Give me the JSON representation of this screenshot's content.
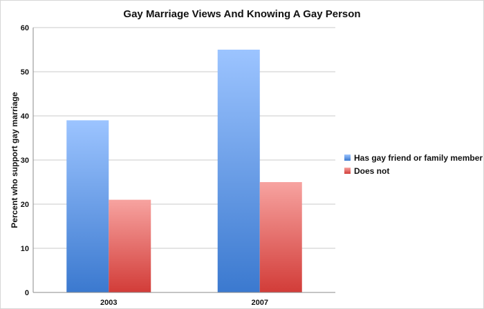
{
  "chart_data": {
    "type": "bar",
    "title": "Gay Marriage Views And Knowing A Gay Person",
    "xlabel": "",
    "ylabel": "Percent who support gay marriage",
    "categories": [
      "2003",
      "2007"
    ],
    "series": [
      {
        "name": "Has gay friend or family member",
        "values": [
          39,
          55
        ],
        "color_top": "#9cc4ff",
        "color_bottom": "#3b79cf"
      },
      {
        "name": "Does not",
        "values": [
          21,
          25
        ],
        "color_top": "#f7a3a0",
        "color_bottom": "#d23c38"
      }
    ],
    "ylim": [
      0,
      60
    ],
    "yticks": [
      0,
      10,
      20,
      30,
      40,
      50,
      60
    ],
    "grid": true,
    "legend_position": "right"
  }
}
